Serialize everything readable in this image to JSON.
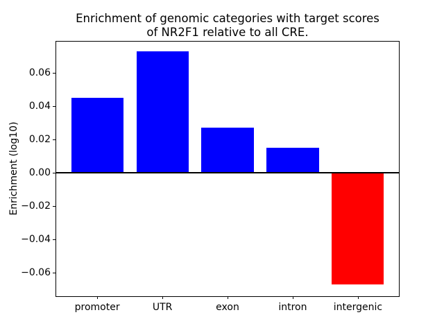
{
  "figure": {
    "background": "#ffffff"
  },
  "chart_data": {
    "type": "bar",
    "title": "Enrichment of genomic categories with target scores\nof NR2F1 relative to all CRE.",
    "title_lines": [
      "Enrichment of genomic categories with target scores",
      "of NR2F1 relative to all CRE."
    ],
    "xlabel": "",
    "ylabel": "Enrichment (log10)",
    "categories": [
      "promoter",
      "UTR",
      "exon",
      "intron",
      "intergenic"
    ],
    "values": [
      0.045,
      0.073,
      0.027,
      0.015,
      -0.067
    ],
    "bar_colors": [
      "#0000ff",
      "#0000ff",
      "#0000ff",
      "#0000ff",
      "#ff0000"
    ],
    "positive_color": "#0000ff",
    "negative_color": "#ff0000",
    "bar_width_fraction": 0.8,
    "yticks": {
      "values": [
        0.06,
        0.04,
        0.02,
        0.0,
        -0.02,
        -0.04,
        -0.06
      ],
      "labels": [
        "0.06",
        "0.04",
        "0.02",
        "0.00",
        "−0.02",
        "−0.04",
        "−0.06"
      ]
    },
    "ylim": [
      -0.0742,
      0.0792
    ],
    "xlim": [
      -0.64,
      4.64
    ],
    "grid": false,
    "legend": null,
    "zero_line": true,
    "axes_color": "#000000"
  }
}
